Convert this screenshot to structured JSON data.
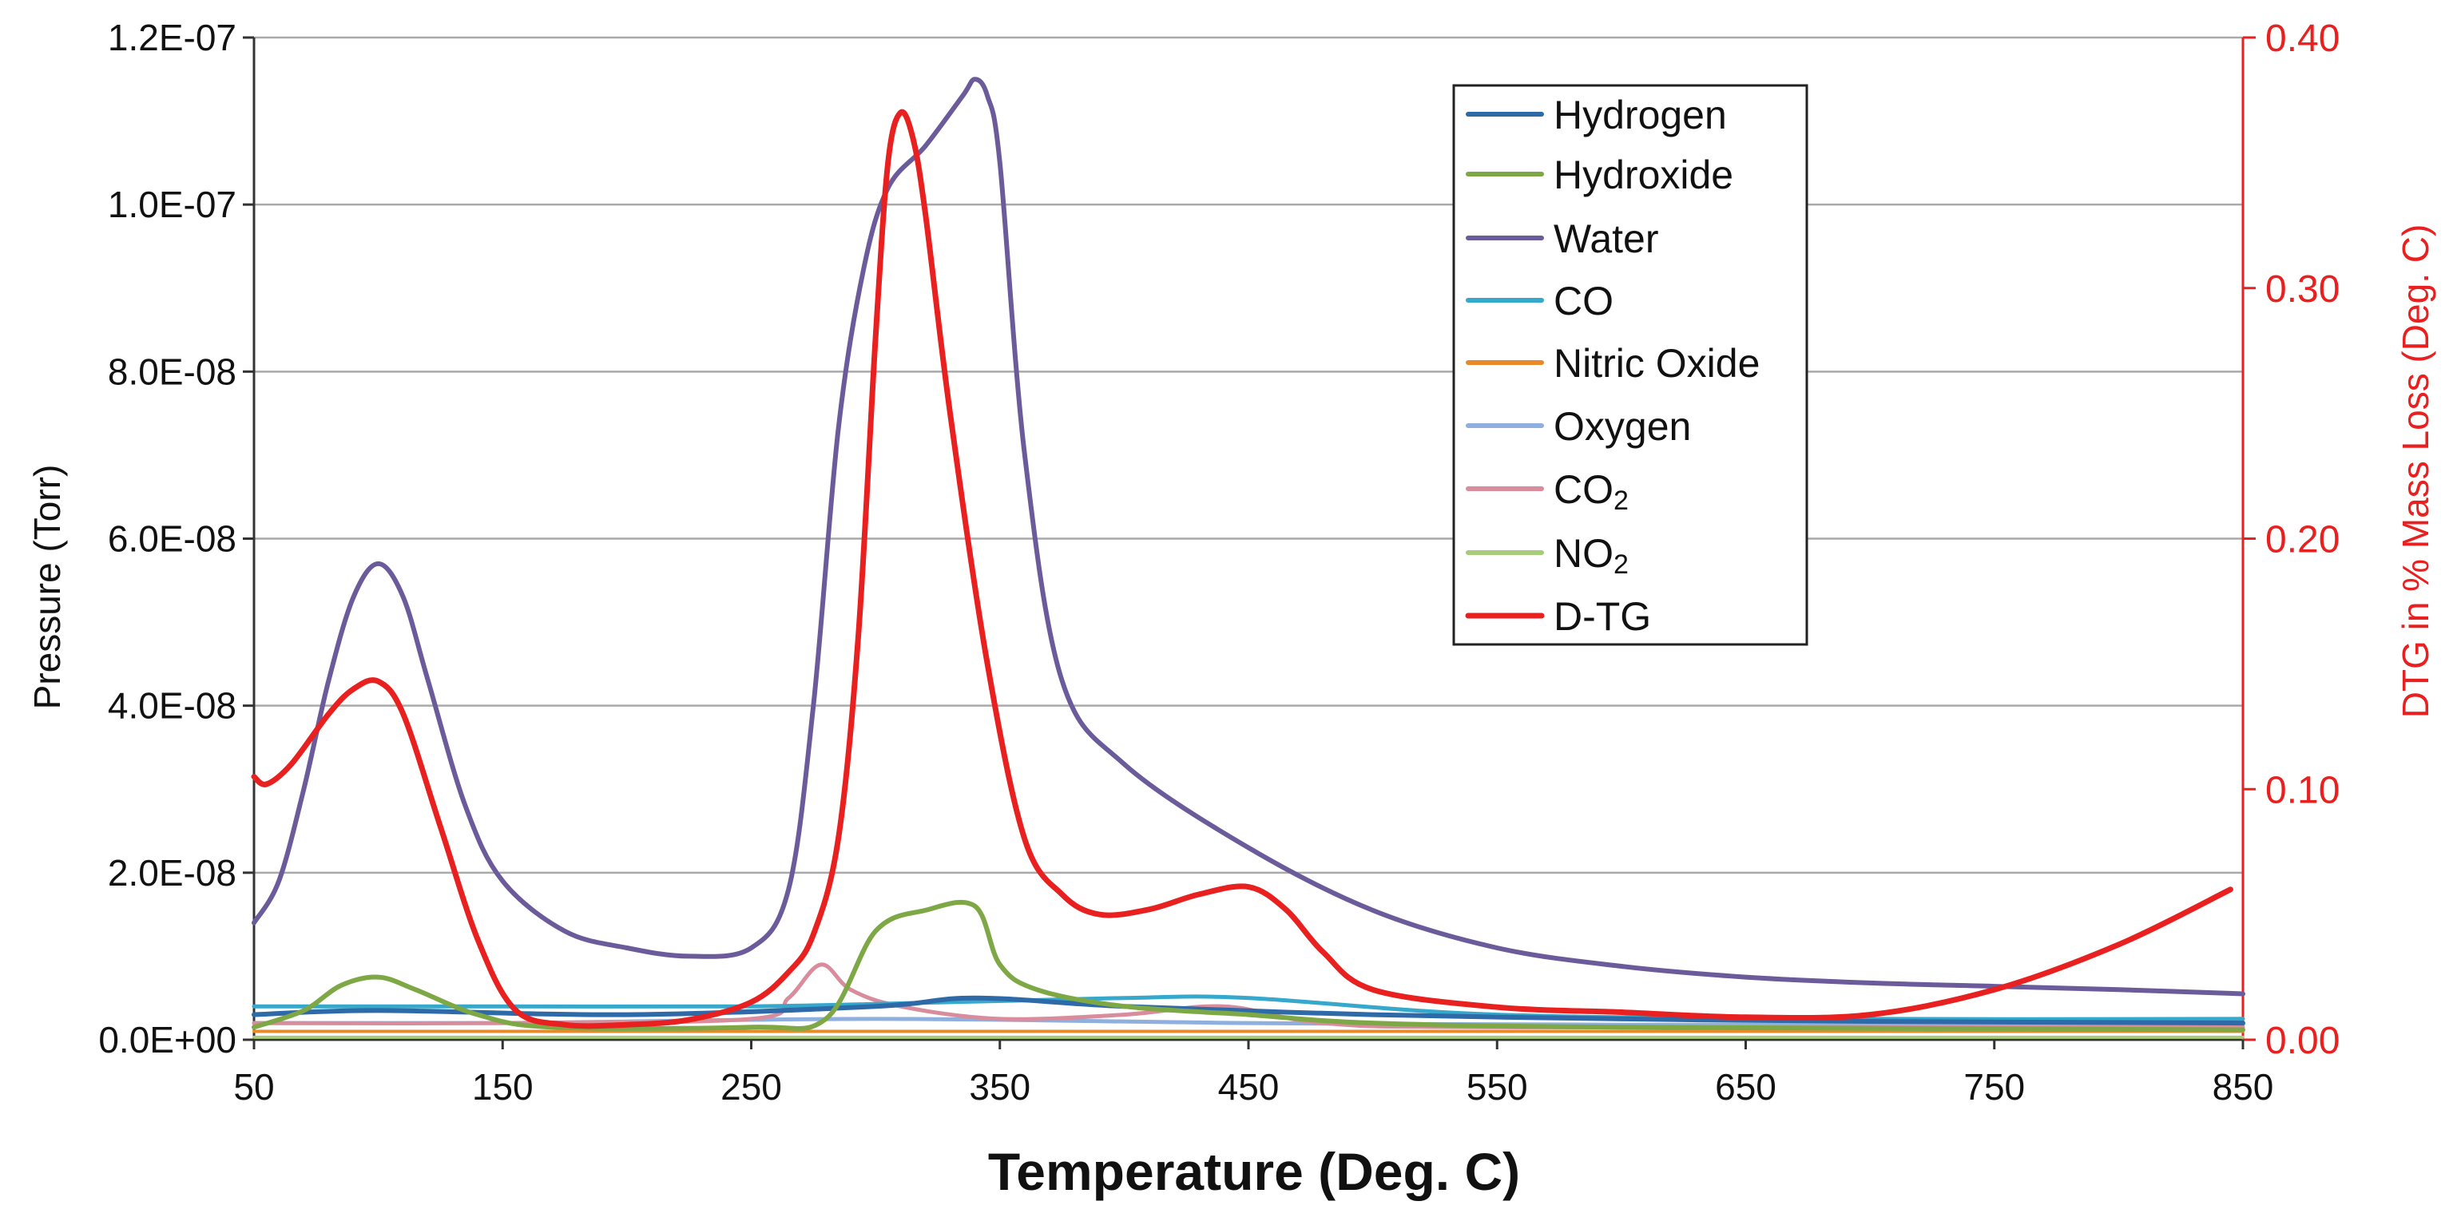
{
  "chart_data": {
    "type": "line",
    "title": "",
    "xlabel": "Temperature (Deg. C)",
    "ylabel": "Pressure (Torr)",
    "y2label": "DTG in % Mass Loss (Deg. C)",
    "xlim": [
      50,
      850
    ],
    "ylim": [
      0,
      1.2e-07
    ],
    "y2lim": [
      0,
      0.4
    ],
    "xticks": [
      50,
      150,
      250,
      350,
      450,
      550,
      650,
      750,
      850
    ],
    "xtick_labels": [
      "50",
      "150",
      "250",
      "350",
      "450",
      "550",
      "650",
      "750",
      "850"
    ],
    "yticks": [
      0,
      2e-08,
      4e-08,
      6e-08,
      8e-08,
      1e-07,
      1.2e-07
    ],
    "ytick_labels": [
      "0.0E+00",
      "2.0E-08",
      "4.0E-08",
      "6.0E-08",
      "8.0E-08",
      "1.0E-07",
      "1.2E-07"
    ],
    "y2ticks": [
      0,
      0.1,
      0.2,
      0.3,
      0.4
    ],
    "y2tick_labels": [
      "0.00",
      "0.10",
      "0.20",
      "0.30",
      "0.40"
    ],
    "grid": true,
    "legend_position": "top-center",
    "colors": {
      "hydrogen": "#2e6aa8",
      "hydroxide": "#7ea845",
      "water": "#6b5b9a",
      "co": "#35a8cc",
      "nitric_oxide": "#e88a2a",
      "oxygen": "#8fb0de",
      "co2": "#d98c9c",
      "no2": "#a7cc7a",
      "dtg": "#e8201f"
    },
    "series": [
      {
        "name": "Hydrogen",
        "key": "hydrogen",
        "axis": "left",
        "x": [
          50,
          100,
          200,
          300,
          340,
          400,
          500,
          600,
          700,
          850
        ],
        "y": [
          3e-09,
          3.5e-09,
          3e-09,
          4e-09,
          5e-09,
          4e-09,
          3e-09,
          2.5e-09,
          2.2e-09,
          2e-09
        ]
      },
      {
        "name": "Hydroxide",
        "key": "hydroxide",
        "axis": "left",
        "x": [
          50,
          70,
          85,
          100,
          115,
          140,
          170,
          250,
          280,
          300,
          320,
          340,
          350,
          365,
          400,
          450,
          500,
          600,
          850
        ],
        "y": [
          1.5e-09,
          3.5e-09,
          6.5e-09,
          7.5e-09,
          6e-09,
          3e-09,
          1.5e-09,
          1.5e-09,
          2.5e-09,
          1.3e-08,
          1.55e-08,
          1.6e-08,
          9e-09,
          6e-09,
          4e-09,
          3e-09,
          2e-09,
          1.5e-09,
          1.2e-09
        ]
      },
      {
        "name": "Water",
        "key": "water",
        "axis": "left",
        "x": [
          50,
          60,
          70,
          80,
          90,
          100,
          110,
          120,
          135,
          150,
          175,
          200,
          225,
          250,
          265,
          275,
          285,
          295,
          305,
          320,
          335,
          340,
          345,
          350,
          360,
          375,
          400,
          450,
          500,
          550,
          600,
          650,
          700,
          750,
          800,
          850
        ],
        "y": [
          1.4e-08,
          1.9e-08,
          3e-08,
          4.3e-08,
          5.3e-08,
          5.7e-08,
          5.3e-08,
          4.3e-08,
          2.8e-08,
          1.9e-08,
          1.3e-08,
          1.1e-08,
          1e-08,
          1.1e-08,
          1.8e-08,
          4e-08,
          7.3e-08,
          9.2e-08,
          1.02e-07,
          1.07e-07,
          1.13e-07,
          1.15e-07,
          1.13e-07,
          1.05e-07,
          7e-08,
          4.3e-08,
          3.3e-08,
          2.3e-08,
          1.55e-08,
          1.1e-08,
          8.8e-09,
          7.5e-09,
          6.8e-09,
          6.4e-09,
          6e-09,
          5.5e-09
        ]
      },
      {
        "name": "CO",
        "key": "co",
        "axis": "left",
        "x": [
          50,
          150,
          250,
          330,
          400,
          450,
          550,
          700,
          850
        ],
        "y": [
          4e-09,
          4e-09,
          4e-09,
          4.5e-09,
          5e-09,
          5e-09,
          3e-09,
          2.5e-09,
          2.5e-09
        ]
      },
      {
        "name": "Nitric Oxide",
        "key": "nitric_oxide",
        "axis": "left",
        "x": [
          50,
          300,
          850
        ],
        "y": [
          1e-09,
          1e-09,
          1e-09
        ]
      },
      {
        "name": "Oxygen",
        "key": "oxygen",
        "axis": "left",
        "x": [
          50,
          150,
          300,
          450,
          600,
          850
        ],
        "y": [
          2e-09,
          2e-09,
          2.5e-09,
          2e-09,
          1.8e-09,
          1.8e-09
        ]
      },
      {
        "name": "CO2",
        "key": "co2",
        "axis": "left",
        "x": [
          50,
          150,
          250,
          265,
          278,
          290,
          310,
          350,
          400,
          440,
          480,
          550,
          850
        ],
        "y": [
          2e-09,
          2e-09,
          2.5e-09,
          5e-09,
          9e-09,
          6e-09,
          4e-09,
          2.5e-09,
          3e-09,
          4e-09,
          2e-09,
          1.5e-09,
          1.5e-09
        ]
      },
      {
        "name": "NO2",
        "key": "no2",
        "axis": "left",
        "x": [
          50,
          850
        ],
        "y": [
          3e-10,
          3e-10
        ]
      },
      {
        "name": "D-TG",
        "key": "dtg",
        "axis": "right",
        "x": [
          50,
          55,
          65,
          80,
          90,
          100,
          110,
          125,
          140,
          155,
          175,
          200,
          225,
          250,
          265,
          275,
          285,
          293,
          300,
          305,
          310,
          315,
          320,
          330,
          345,
          360,
          375,
          390,
          410,
          430,
          450,
          465,
          480,
          500,
          550,
          600,
          650,
          700,
          750,
          800,
          845
        ],
        "y": [
          0.105,
          0.102,
          0.11,
          0.13,
          0.14,
          0.143,
          0.13,
          0.085,
          0.04,
          0.012,
          0.006,
          0.006,
          0.008,
          0.015,
          0.027,
          0.042,
          0.08,
          0.16,
          0.28,
          0.35,
          0.37,
          0.36,
          0.33,
          0.25,
          0.15,
          0.08,
          0.058,
          0.05,
          0.052,
          0.058,
          0.061,
          0.052,
          0.035,
          0.02,
          0.013,
          0.011,
          0.009,
          0.01,
          0.02,
          0.038,
          0.06
        ]
      }
    ],
    "legend": [
      {
        "label": "Hydrogen",
        "key": "hydrogen"
      },
      {
        "label": "Hydroxide",
        "key": "hydroxide"
      },
      {
        "label": "Water",
        "key": "water"
      },
      {
        "label": "CO",
        "key": "co"
      },
      {
        "label": "Nitric Oxide",
        "key": "nitric_oxide"
      },
      {
        "label": "Oxygen",
        "key": "oxygen"
      },
      {
        "label": "CO",
        "sub": "2",
        "key": "co2"
      },
      {
        "label": "NO",
        "sub": "2",
        "key": "no2"
      },
      {
        "label": "D-TG",
        "key": "dtg"
      }
    ]
  }
}
